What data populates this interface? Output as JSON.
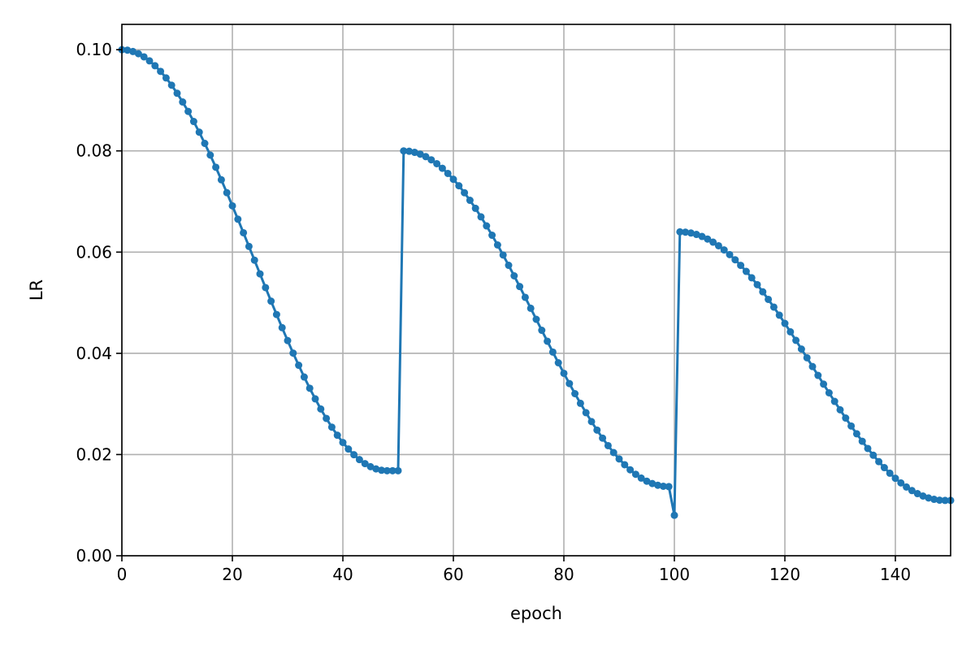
{
  "chart_data": {
    "type": "line",
    "title": "",
    "xlabel": "epoch",
    "ylabel": "LR",
    "xlim": [
      0,
      150
    ],
    "ylim": [
      0,
      0.105
    ],
    "xticks": [
      0,
      20,
      40,
      60,
      80,
      100,
      120,
      140
    ],
    "xtick_labels": [
      "0",
      "20",
      "40",
      "60",
      "80",
      "100",
      "120",
      "140"
    ],
    "yticks": [
      0,
      0.02,
      0.04,
      0.06,
      0.08,
      0.1
    ],
    "ytick_labels": [
      "0.00",
      "0.02",
      "0.04",
      "0.06",
      "0.08",
      "0.10"
    ],
    "grid": true,
    "markers": true,
    "colors": {
      "series": "#1f77b4",
      "grid": "#b0b0b0",
      "axes": "#000000"
    },
    "x": [
      0,
      1,
      2,
      3,
      4,
      5,
      6,
      7,
      8,
      9,
      10,
      11,
      12,
      13,
      14,
      15,
      16,
      17,
      18,
      19,
      20,
      21,
      22,
      23,
      24,
      25,
      26,
      27,
      28,
      29,
      30,
      31,
      32,
      33,
      34,
      35,
      36,
      37,
      38,
      39,
      40,
      41,
      42,
      43,
      44,
      45,
      46,
      47,
      48,
      49,
      50,
      51,
      52,
      53,
      54,
      55,
      56,
      57,
      58,
      59,
      60,
      61,
      62,
      63,
      64,
      65,
      66,
      67,
      68,
      69,
      70,
      71,
      72,
      73,
      74,
      75,
      76,
      77,
      78,
      79,
      80,
      81,
      82,
      83,
      84,
      85,
      86,
      87,
      88,
      89,
      90,
      91,
      92,
      93,
      94,
      95,
      96,
      97,
      98,
      99,
      100,
      101,
      102,
      103,
      104,
      105,
      106,
      107,
      108,
      109,
      110,
      111,
      112,
      113,
      114,
      115,
      116,
      117,
      118,
      119,
      120,
      121,
      122,
      123,
      124,
      125,
      126,
      127,
      128,
      129,
      130,
      131,
      132,
      133,
      134,
      135,
      136,
      137,
      138,
      139,
      140,
      141,
      142,
      143,
      144,
      145,
      146,
      147,
      148,
      149,
      150
    ],
    "series": [
      {
        "values": [
          0.1,
          0.09991,
          0.09964,
          0.0992,
          0.09858,
          0.09779,
          0.09683,
          0.09571,
          0.09442,
          0.09298,
          0.09139,
          0.08966,
          0.0878,
          0.08581,
          0.0837,
          0.08148,
          0.07917,
          0.07677,
          0.07429,
          0.07174,
          0.06914,
          0.0665,
          0.06382,
          0.06112,
          0.05841,
          0.0557,
          0.05299,
          0.05031,
          0.04767,
          0.04507,
          0.04252,
          0.04004,
          0.03764,
          0.03532,
          0.0331,
          0.031,
          0.029,
          0.02714,
          0.02541,
          0.02382,
          0.02238,
          0.02109,
          0.01996,
          0.019,
          0.01821,
          0.0176,
          0.01716,
          0.01689,
          0.0168,
          0.0168,
          0.0168,
          0.08,
          0.07993,
          0.07971,
          0.07936,
          0.07886,
          0.07823,
          0.07747,
          0.07657,
          0.07554,
          0.07439,
          0.07311,
          0.07173,
          0.07024,
          0.06865,
          0.06696,
          0.06518,
          0.06333,
          0.06141,
          0.05943,
          0.05739,
          0.05531,
          0.0532,
          0.05106,
          0.0489,
          0.04672,
          0.04455,
          0.04239,
          0.04024,
          0.03813,
          0.03605,
          0.03402,
          0.03203,
          0.03012,
          0.02827,
          0.02651,
          0.02483,
          0.02325,
          0.02176,
          0.02039,
          0.01913,
          0.01799,
          0.01698,
          0.0161,
          0.01535,
          0.01474,
          0.01427,
          0.01393,
          0.01373,
          0.01366,
          0.008,
          0.064,
          0.06394,
          0.06377,
          0.06349,
          0.06309,
          0.06258,
          0.06197,
          0.06126,
          0.06043,
          0.05951,
          0.05849,
          0.05738,
          0.05619,
          0.05492,
          0.05357,
          0.05215,
          0.05066,
          0.04913,
          0.04754,
          0.04591,
          0.04425,
          0.04256,
          0.04084,
          0.03912,
          0.03738,
          0.03564,
          0.03391,
          0.03219,
          0.0305,
          0.02884,
          0.02721,
          0.02563,
          0.0241,
          0.02262,
          0.0212,
          0.01986,
          0.0186,
          0.01741,
          0.01631,
          0.01531,
          0.01439,
          0.01358,
          0.01288,
          0.01228,
          0.0118,
          0.01142,
          0.01115,
          0.01098,
          0.01093,
          0.01093
        ]
      }
    ]
  }
}
